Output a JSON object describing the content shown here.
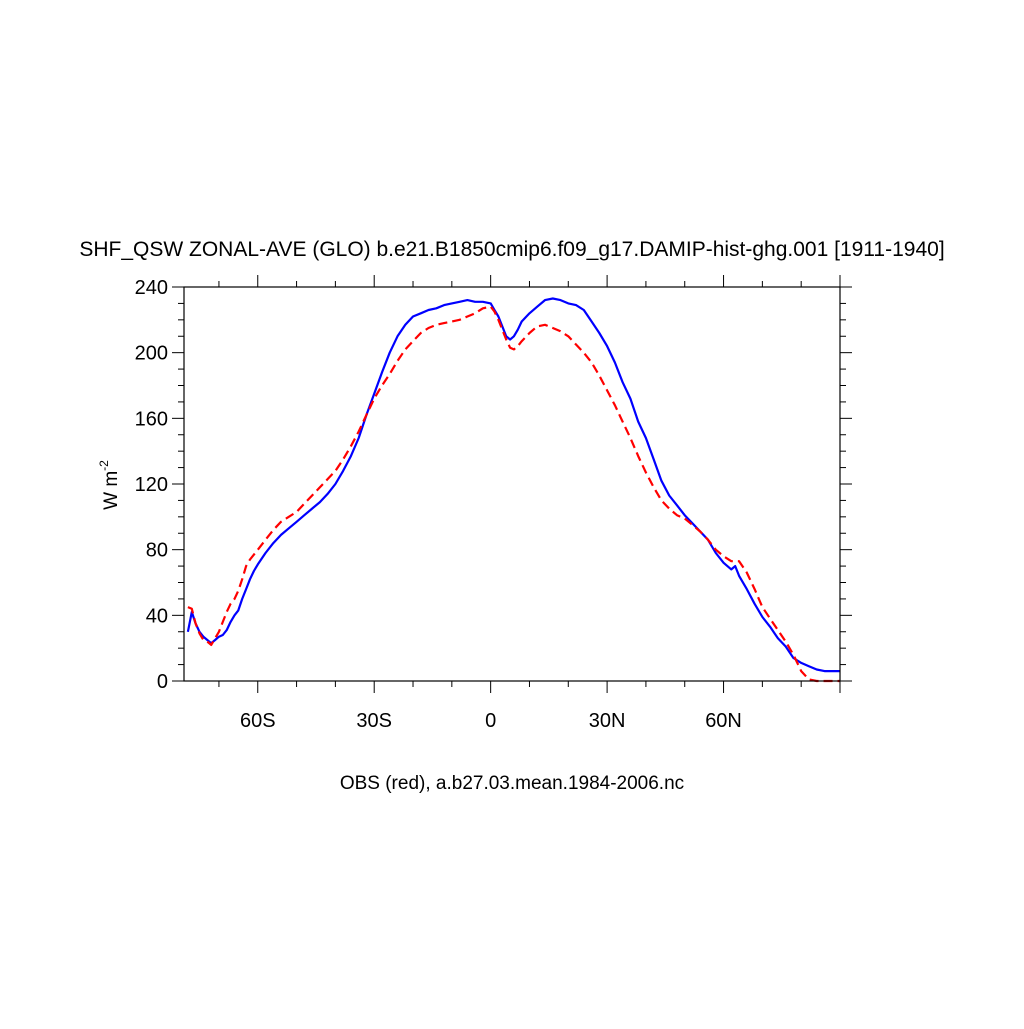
{
  "chart_data": {
    "type": "line",
    "title": "SHF_QSW ZONAL-AVE (GLO) b.e21.B1850cmip6.f09_g17.DAMIP-hist-ghg.001 [1911-1940]",
    "ylabel_base": "W m",
    "ylabel_exp": "-2",
    "xlabel": "",
    "caption": "OBS (red), a.b27.03.mean.1984-2006.nc",
    "xlim": [
      -79,
      90
    ],
    "ylim": [
      0,
      240
    ],
    "x_ticks": [
      {
        "value": -60,
        "label": "60S"
      },
      {
        "value": -30,
        "label": "30S"
      },
      {
        "value": 0,
        "label": "0"
      },
      {
        "value": 30,
        "label": "30N"
      },
      {
        "value": 60,
        "label": "60N"
      }
    ],
    "y_ticks": [
      0,
      40,
      80,
      120,
      160,
      200,
      240
    ],
    "grid": false,
    "series": [
      {
        "color": "#0000ff",
        "dash": "solid",
        "points": [
          [
            -78,
            30
          ],
          [
            -77,
            42
          ],
          [
            -76,
            35
          ],
          [
            -75,
            30
          ],
          [
            -74,
            27
          ],
          [
            -73,
            25
          ],
          [
            -72,
            23
          ],
          [
            -71,
            25
          ],
          [
            -70,
            27
          ],
          [
            -69,
            28
          ],
          [
            -68,
            31
          ],
          [
            -67,
            36
          ],
          [
            -66,
            40
          ],
          [
            -65,
            43
          ],
          [
            -64,
            50
          ],
          [
            -63,
            56
          ],
          [
            -62,
            62
          ],
          [
            -61,
            67
          ],
          [
            -60,
            71
          ],
          [
            -58,
            78
          ],
          [
            -56,
            84
          ],
          [
            -54,
            89
          ],
          [
            -52,
            93
          ],
          [
            -50,
            97
          ],
          [
            -48,
            101
          ],
          [
            -46,
            105
          ],
          [
            -44,
            109
          ],
          [
            -42,
            114
          ],
          [
            -40,
            120
          ],
          [
            -38,
            128
          ],
          [
            -36,
            137
          ],
          [
            -34,
            148
          ],
          [
            -32,
            162
          ],
          [
            -30,
            175
          ],
          [
            -28,
            188
          ],
          [
            -26,
            200
          ],
          [
            -24,
            210
          ],
          [
            -22,
            217
          ],
          [
            -20,
            222
          ],
          [
            -18,
            224
          ],
          [
            -16,
            226
          ],
          [
            -14,
            227
          ],
          [
            -12,
            229
          ],
          [
            -10,
            230
          ],
          [
            -8,
            231
          ],
          [
            -6,
            232
          ],
          [
            -4,
            231
          ],
          [
            -2,
            231
          ],
          [
            0,
            230
          ],
          [
            1,
            226
          ],
          [
            2,
            222
          ],
          [
            3,
            216
          ],
          [
            4,
            210
          ],
          [
            5,
            208
          ],
          [
            6,
            210
          ],
          [
            7,
            214
          ],
          [
            8,
            219
          ],
          [
            10,
            224
          ],
          [
            12,
            228
          ],
          [
            14,
            232
          ],
          [
            16,
            233
          ],
          [
            18,
            232
          ],
          [
            20,
            230
          ],
          [
            22,
            229
          ],
          [
            24,
            226
          ],
          [
            26,
            219
          ],
          [
            28,
            212
          ],
          [
            30,
            204
          ],
          [
            32,
            194
          ],
          [
            34,
            182
          ],
          [
            36,
            172
          ],
          [
            38,
            158
          ],
          [
            40,
            148
          ],
          [
            42,
            135
          ],
          [
            44,
            122
          ],
          [
            46,
            113
          ],
          [
            48,
            107
          ],
          [
            50,
            101
          ],
          [
            52,
            96
          ],
          [
            54,
            91
          ],
          [
            56,
            86
          ],
          [
            58,
            78
          ],
          [
            60,
            72
          ],
          [
            62,
            68
          ],
          [
            63,
            70
          ],
          [
            64,
            64
          ],
          [
            66,
            56
          ],
          [
            68,
            47
          ],
          [
            70,
            39
          ],
          [
            72,
            33
          ],
          [
            74,
            26
          ],
          [
            76,
            21
          ],
          [
            78,
            14
          ],
          [
            80,
            11
          ],
          [
            82,
            9
          ],
          [
            84,
            7
          ],
          [
            86,
            6
          ],
          [
            88,
            6
          ],
          [
            90,
            6
          ]
        ]
      },
      {
        "color": "#ff0000",
        "dash": "dashed",
        "points": [
          [
            -78,
            45
          ],
          [
            -77,
            44
          ],
          [
            -76,
            35
          ],
          [
            -75,
            29
          ],
          [
            -74,
            25
          ],
          [
            -73,
            24
          ],
          [
            -72,
            22
          ],
          [
            -71,
            26
          ],
          [
            -70,
            30
          ],
          [
            -69,
            36
          ],
          [
            -68,
            42
          ],
          [
            -67,
            47
          ],
          [
            -66,
            50
          ],
          [
            -65,
            55
          ],
          [
            -64,
            62
          ],
          [
            -63,
            70
          ],
          [
            -62,
            74
          ],
          [
            -60,
            80
          ],
          [
            -58,
            86
          ],
          [
            -56,
            92
          ],
          [
            -54,
            97
          ],
          [
            -52,
            100
          ],
          [
            -50,
            103
          ],
          [
            -48,
            108
          ],
          [
            -46,
            113
          ],
          [
            -44,
            118
          ],
          [
            -42,
            123
          ],
          [
            -40,
            128
          ],
          [
            -38,
            135
          ],
          [
            -36,
            143
          ],
          [
            -34,
            152
          ],
          [
            -32,
            162
          ],
          [
            -30,
            172
          ],
          [
            -28,
            180
          ],
          [
            -26,
            187
          ],
          [
            -24,
            195
          ],
          [
            -22,
            202
          ],
          [
            -20,
            207
          ],
          [
            -18,
            212
          ],
          [
            -16,
            215
          ],
          [
            -14,
            217
          ],
          [
            -12,
            218
          ],
          [
            -10,
            219
          ],
          [
            -8,
            220
          ],
          [
            -6,
            222
          ],
          [
            -4,
            224
          ],
          [
            -2,
            227
          ],
          [
            0,
            228
          ],
          [
            1,
            225
          ],
          [
            2,
            220
          ],
          [
            3,
            214
          ],
          [
            4,
            208
          ],
          [
            5,
            203
          ],
          [
            6,
            202
          ],
          [
            7,
            204
          ],
          [
            8,
            207
          ],
          [
            10,
            212
          ],
          [
            12,
            216
          ],
          [
            14,
            217
          ],
          [
            16,
            215
          ],
          [
            18,
            213
          ],
          [
            20,
            210
          ],
          [
            22,
            205
          ],
          [
            24,
            200
          ],
          [
            26,
            194
          ],
          [
            28,
            186
          ],
          [
            30,
            177
          ],
          [
            32,
            168
          ],
          [
            34,
            158
          ],
          [
            36,
            148
          ],
          [
            38,
            137
          ],
          [
            40,
            127
          ],
          [
            42,
            118
          ],
          [
            44,
            110
          ],
          [
            46,
            105
          ],
          [
            48,
            101
          ],
          [
            50,
            99
          ],
          [
            52,
            95
          ],
          [
            54,
            91
          ],
          [
            56,
            86
          ],
          [
            58,
            80
          ],
          [
            60,
            76
          ],
          [
            62,
            73
          ],
          [
            64,
            73
          ],
          [
            66,
            66
          ],
          [
            68,
            56
          ],
          [
            70,
            45
          ],
          [
            72,
            38
          ],
          [
            74,
            31
          ],
          [
            76,
            24
          ],
          [
            78,
            16
          ],
          [
            80,
            6
          ],
          [
            82,
            1
          ],
          [
            84,
            0
          ],
          [
            86,
            0
          ],
          [
            88,
            0
          ],
          [
            90,
            0
          ]
        ]
      }
    ]
  }
}
